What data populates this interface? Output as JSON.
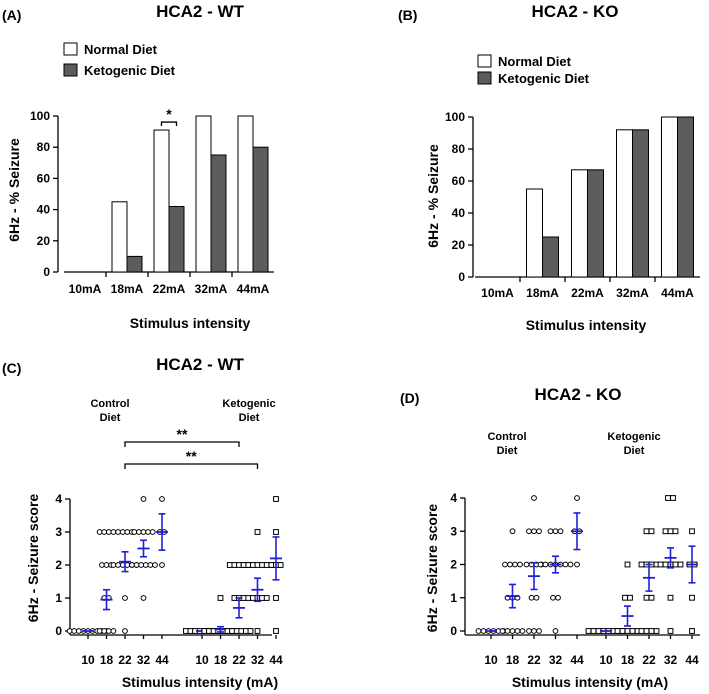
{
  "colors": {
    "normal_fill": "#ffffff",
    "ketogenic_fill": "#5c5c5c",
    "bar_stroke": "#000000",
    "mean_sem": "#1f1fd6",
    "axis": "#000000"
  },
  "chart_data": [
    {
      "panel": "(A)",
      "type": "bar",
      "title": "HCA2 - WT",
      "xlabel": "Stimulus intensity",
      "ylabel": "6Hz - % Seizure",
      "ylim": [
        0,
        100
      ],
      "yticks": [
        0,
        20,
        40,
        60,
        80,
        100
      ],
      "categories": [
        "10mA",
        "18mA",
        "22mA",
        "32mA",
        "44mA"
      ],
      "series": [
        {
          "name": "Normal Diet",
          "values": [
            0,
            45,
            91,
            100,
            100
          ]
        },
        {
          "name": "Ketogenic Diet",
          "values": [
            0,
            10,
            42,
            75,
            80
          ]
        }
      ],
      "annotations": [
        {
          "text": "*",
          "category": "22mA"
        }
      ]
    },
    {
      "panel": "(B)",
      "type": "bar",
      "title": "HCA2 - KO",
      "xlabel": "Stimulus intensity",
      "ylabel": "6Hz - % Seizure",
      "ylim": [
        0,
        100
      ],
      "yticks": [
        0,
        20,
        40,
        60,
        80,
        100
      ],
      "categories": [
        "10mA",
        "18mA",
        "22mA",
        "32mA",
        "44mA"
      ],
      "series": [
        {
          "name": "Normal Diet",
          "values": [
            0,
            55,
            67,
            92,
            100
          ]
        },
        {
          "name": "Ketogenic Diet",
          "values": [
            0,
            25,
            67,
            92,
            100
          ]
        }
      ]
    },
    {
      "panel": "(C)",
      "type": "scatter",
      "title": "HCA2 - WT",
      "xlabel": "Stimulus intensity (mA)",
      "ylabel": "6Hz - Seizure score",
      "ylim": [
        0,
        4
      ],
      "yticks": [
        0,
        1,
        2,
        3,
        4
      ],
      "group_labels": [
        "Control Diet",
        "Ketogenic Diet"
      ],
      "groups": [
        {
          "name": "Control Diet",
          "marker": "circle",
          "categories": [
            "10",
            "18",
            "22",
            "32",
            "44"
          ],
          "points": [
            [
              0,
              0,
              0,
              0,
              0,
              0,
              0,
              0,
              0
            ],
            [
              0,
              0,
              0,
              0,
              1,
              1,
              2,
              2,
              2,
              3,
              3,
              3,
              3
            ],
            [
              0,
              1,
              2,
              2,
              2,
              2,
              2,
              2,
              3,
              3,
              3,
              3
            ],
            [
              1,
              2,
              2,
              2,
              2,
              2,
              2,
              3,
              3,
              3,
              3,
              3,
              4
            ],
            [
              2,
              3,
              3,
              4
            ]
          ],
          "mean": [
            0,
            0.95,
            2.1,
            2.5,
            3.0
          ],
          "sem": [
            0,
            0.3,
            0.3,
            0.25,
            0.55
          ]
        },
        {
          "name": "Ketogenic Diet",
          "marker": "square",
          "categories": [
            "10",
            "18",
            "22",
            "32",
            "44"
          ],
          "points": [
            [
              0,
              0,
              0,
              0,
              0,
              0,
              0,
              0
            ],
            [
              0,
              0,
              0,
              0,
              0,
              0,
              0,
              0,
              1
            ],
            [
              0,
              0,
              0,
              0,
              0,
              0,
              1,
              1,
              1,
              2,
              2,
              2,
              2,
              2
            ],
            [
              0,
              1,
              1,
              1,
              1,
              1,
              2,
              2,
              2,
              2,
              2,
              2,
              2,
              3
            ],
            [
              0,
              1,
              2,
              2,
              2,
              3,
              4
            ]
          ],
          "mean": [
            0,
            0.05,
            0.7,
            1.25,
            2.2
          ],
          "sem": [
            0,
            0.08,
            0.3,
            0.35,
            0.65
          ]
        }
      ],
      "significance": [
        {
          "text": "**",
          "from": "22",
          "to": "22",
          "from_group": 0,
          "to_group": 1
        },
        {
          "text": "**",
          "from": "22",
          "to": "32",
          "from_group": 0,
          "to_group": 1
        }
      ]
    },
    {
      "panel": "(D)",
      "type": "scatter",
      "title": "HCA2 - KO",
      "xlabel": "Stimulus intensity (mA)",
      "ylabel": "6Hz - Seizure score",
      "ylim": [
        0,
        4
      ],
      "yticks": [
        0,
        1,
        2,
        3,
        4
      ],
      "group_labels": [
        "Control Diet",
        "Ketogenic Diet"
      ],
      "groups": [
        {
          "name": "Control Diet",
          "marker": "circle",
          "categories": [
            "10",
            "18",
            "22",
            "32",
            "44"
          ],
          "points": [
            [
              0,
              0,
              0,
              0,
              0,
              0
            ],
            [
              0,
              0,
              0,
              0,
              0,
              1,
              1,
              1,
              2,
              2,
              2,
              2,
              3
            ],
            [
              0,
              0,
              0,
              1,
              1,
              2,
              2,
              2,
              2,
              3,
              3,
              3,
              4
            ],
            [
              0,
              1,
              1,
              2,
              2,
              2,
              2,
              2,
              2,
              2,
              3,
              3,
              3
            ],
            [
              2,
              3,
              3,
              4
            ]
          ],
          "mean": [
            0,
            1.05,
            1.65,
            2.0,
            3.0
          ],
          "sem": [
            0,
            0.35,
            0.4,
            0.25,
            0.55
          ]
        },
        {
          "name": "Ketogenic Diet",
          "marker": "square",
          "categories": [
            "10",
            "18",
            "22",
            "32",
            "44"
          ],
          "points": [
            [
              0,
              0,
              0,
              0,
              0,
              0,
              0,
              0
            ],
            [
              0,
              0,
              0,
              0,
              0,
              1,
              1,
              2
            ],
            [
              0,
              0,
              0,
              0,
              1,
              1,
              2,
              2,
              2,
              2,
              3,
              3
            ],
            [
              0,
              1,
              2,
              2,
              2,
              2,
              2,
              3,
              3,
              3,
              4,
              4
            ],
            [
              0,
              1,
              2,
              2,
              3
            ]
          ],
          "mean": [
            0,
            0.45,
            1.6,
            2.2,
            2.0
          ],
          "sem": [
            0,
            0.3,
            0.4,
            0.3,
            0.55
          ]
        }
      ]
    }
  ]
}
